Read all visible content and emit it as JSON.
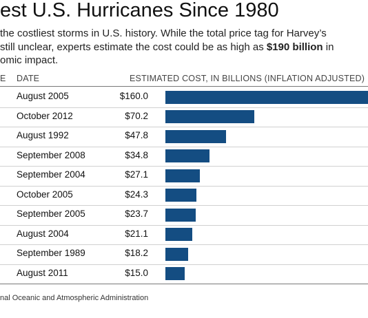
{
  "title": "est U.S. Hurricanes Since 1980",
  "subtitle": {
    "line1": "the costliest storms in U.S. history. While the total price tag for Harvey’s",
    "line2_before": " still unclear, experts estimate the cost could be as high as ",
    "line2_highlight": "$190 billion",
    "line2_after": " in",
    "line3": "omic impact."
  },
  "headers": {
    "cut": "E",
    "date": "DATE",
    "cost": "ESTIMATED COST, IN BILLIONS (INFLATION ADJUSTED)"
  },
  "source": "nal Oceanic and Atmospheric Administration",
  "colors": {
    "bar": "#144d82"
  },
  "chart_data": {
    "type": "bar",
    "orientation": "horizontal",
    "title": "est U.S. Hurricanes Since 1980",
    "categories": [
      "August 2005",
      "October 2012",
      "August 1992",
      "September 2008",
      "September 2004",
      "October 2005",
      "September 2005",
      "August 2004",
      "September 1989",
      "August 2011"
    ],
    "values": [
      160.0,
      70.2,
      47.8,
      34.8,
      27.1,
      24.3,
      23.7,
      21.1,
      18.2,
      15.0
    ],
    "value_labels": [
      "$160.0",
      "$70.2",
      "$47.8",
      "$34.8",
      "$27.1",
      "$24.3",
      "$23.7",
      "$21.1",
      "$18.2",
      "$15.0"
    ],
    "xlabel": "ESTIMATED COST, IN BILLIONS (INFLATION ADJUSTED)",
    "ylabel": "DATE",
    "xlim": [
      0,
      160
    ],
    "grid": false
  }
}
